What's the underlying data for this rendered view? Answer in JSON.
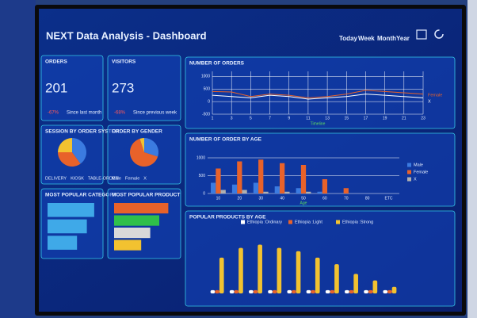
{
  "header": {
    "title": "NEXT Data Analysis - Dashboard",
    "tabs": [
      "Today",
      "Week",
      "Month",
      "Year"
    ]
  },
  "orders": {
    "title": "ORDERS",
    "value": 201,
    "change": "-67%",
    "note": "Since last month"
  },
  "visitors": {
    "title": "VISITORS",
    "value": 273,
    "change": "-68%",
    "note": "Since previous week"
  },
  "session": {
    "title": "SESSION BY ORDER SYSTEM",
    "type": "pie",
    "categories": [
      "DELIVERY",
      "KIOSK",
      "TABLE-ORDER"
    ],
    "values": [
      40,
      35,
      25
    ],
    "colors": [
      "#3b7be0",
      "#e8622a",
      "#f2c230"
    ]
  },
  "gender": {
    "title": "ORDER BY GENDER",
    "type": "pie",
    "categories": [
      "Male",
      "Female",
      "X"
    ],
    "values": [
      30,
      65,
      5
    ],
    "colors": [
      "#3b7be0",
      "#e8622a",
      "#f2c230"
    ]
  },
  "category": {
    "title": "MOST POPULAR CATEGORY",
    "type": "hbar",
    "values": [
      95,
      80,
      60
    ],
    "colors": [
      "#3fa9e8",
      "#3fa9e8",
      "#3fa9e8"
    ],
    "xlim": [
      0,
      100
    ]
  },
  "product": {
    "title": "MOST POPULAR PRODUCT",
    "type": "hbar",
    "values": [
      90,
      75,
      60,
      45
    ],
    "colors": [
      "#e8622a",
      "#2fbf4a",
      "#d9d9d9",
      "#f2c230"
    ],
    "xlim": [
      0,
      100
    ]
  },
  "orders_chart": {
    "title": "NUMBER OF ORDERS",
    "type": "line",
    "xlabel": "Timeline",
    "x": [
      1,
      3,
      5,
      7,
      9,
      11,
      13,
      15,
      17,
      19,
      21,
      23
    ],
    "xlim": [
      1,
      23
    ],
    "xticks": [
      1,
      3,
      5,
      7,
      9,
      11,
      13,
      15,
      17,
      19,
      21,
      23
    ],
    "ylim": [
      -500,
      1200
    ],
    "yticks": [
      -500,
      0,
      500,
      1000
    ],
    "grid": true,
    "series": [
      {
        "name": "Female",
        "color": "#e8622a",
        "values": [
          400,
          380,
          200,
          300,
          250,
          150,
          200,
          300,
          450,
          400,
          350,
          300
        ]
      },
      {
        "name": "X",
        "color": "#ffffff",
        "values": [
          250,
          200,
          150,
          250,
          200,
          100,
          150,
          200,
          300,
          250,
          200,
          150
        ]
      }
    ]
  },
  "age_chart": {
    "title": "NUMBER OF ORDER BY AGE",
    "type": "bar",
    "xlabel": "Age",
    "categories": [
      "10",
      "20",
      "30",
      "40",
      "50",
      "60",
      "70",
      "80",
      "ETC"
    ],
    "ylim": [
      0,
      1200
    ],
    "yticks": [
      0,
      500,
      1000
    ],
    "grid": true,
    "series": [
      {
        "name": "Male",
        "color": "#3b7be0",
        "values": [
          300,
          250,
          300,
          200,
          150,
          50,
          0,
          0,
          0
        ]
      },
      {
        "name": "Female",
        "color": "#e8622a",
        "values": [
          700,
          900,
          950,
          850,
          800,
          400,
          150,
          0,
          0
        ]
      },
      {
        "name": "X",
        "color": "#b0b0b0",
        "values": [
          100,
          100,
          50,
          50,
          50,
          0,
          0,
          0,
          0
        ]
      }
    ]
  },
  "products_age": {
    "title": "POPULAR PRODUCTS BY AGE",
    "type": "bar",
    "categories": [
      null,
      null,
      null,
      null,
      null,
      null,
      null,
      null,
      null,
      null
    ],
    "ylim": [
      0,
      100
    ],
    "grid": true,
    "series": [
      {
        "name": "Ethiopia :Ordinary",
        "color": "#ffffff",
        "values": [
          5,
          5,
          5,
          5,
          5,
          5,
          5,
          5,
          5,
          5
        ]
      },
      {
        "name": "Ethiopia :Light",
        "color": "#e8622a",
        "values": [
          5,
          5,
          5,
          5,
          5,
          5,
          5,
          5,
          5,
          5
        ]
      },
      {
        "name": "Ethiopia :Strong",
        "color": "#f2c230",
        "values": [
          55,
          70,
          75,
          70,
          65,
          55,
          45,
          30,
          20,
          10
        ]
      }
    ]
  }
}
